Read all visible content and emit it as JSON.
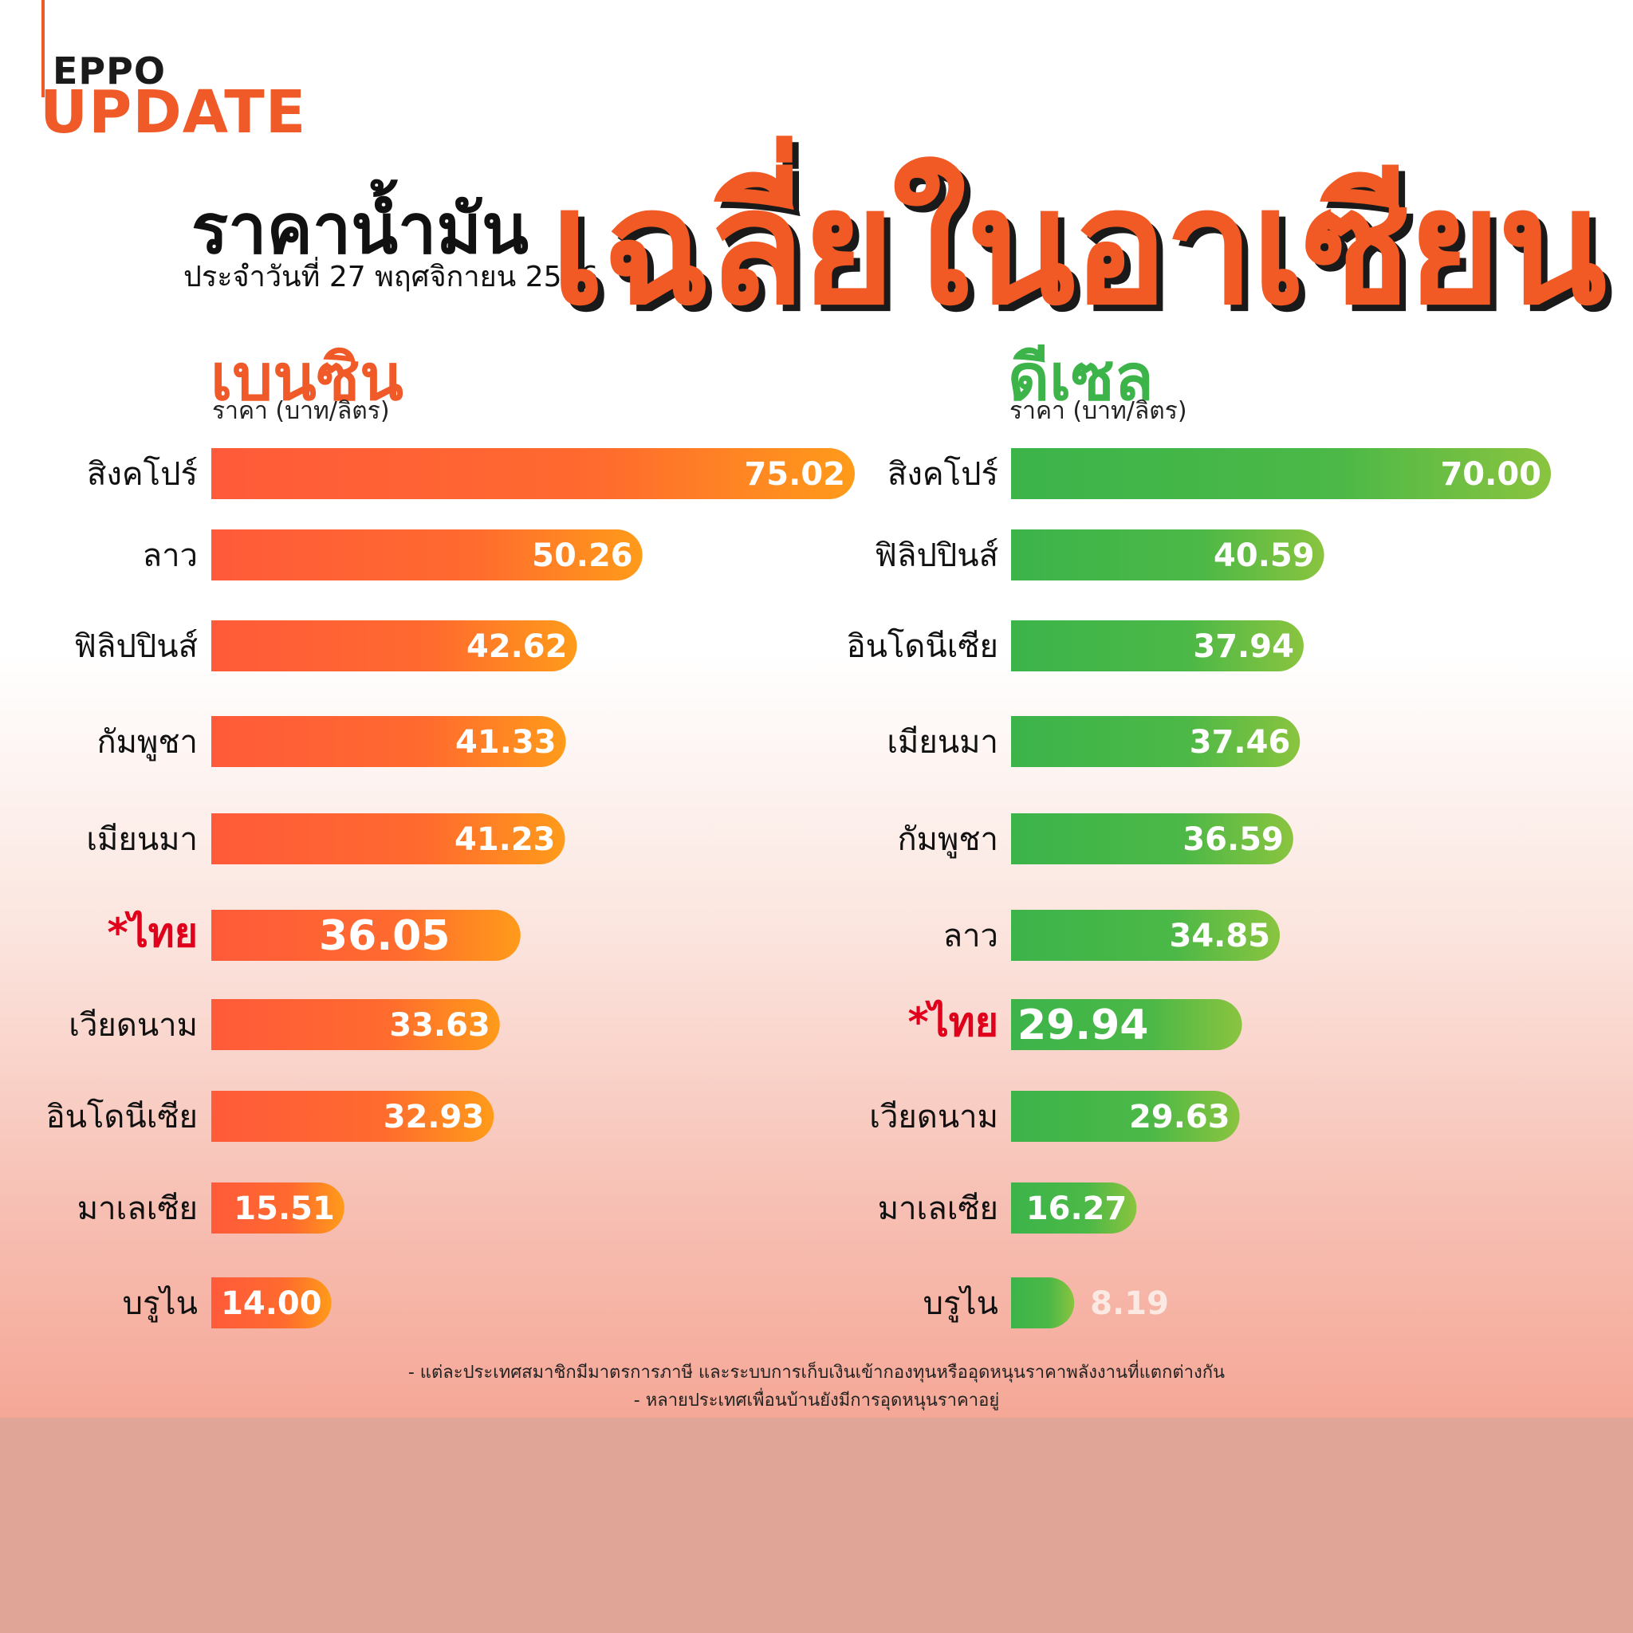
{
  "logo": {
    "line1": "EPPO",
    "line2": "UPDATE"
  },
  "title": {
    "main": "ราคาน้ำมัน",
    "date": "ประจำวันที่ 27 พฤศจิกายน 2566",
    "highlight": "เฉลี่ยในอาเซียน"
  },
  "colors": {
    "accent": "#f05a28",
    "benzin_start": "#ff5a3a",
    "benzin_end": "#ff9b1a",
    "diesel_start": "#3cb44a",
    "diesel_end": "#8ac43f",
    "thai": "#e0001b"
  },
  "notes": [
    "- แต่ละประเทศสมาชิกมีมาตรการภาษี และระบบการเก็บเงินเข้ากองทุนหรืออุดหนุนราคาพลังงานที่แตกต่างกัน",
    "- หลายประเทศเพื่อนบ้านยังมีการอุดหนุนราคาอยู่"
  ],
  "chart_data": [
    {
      "type": "bar",
      "title": "เบนซิน",
      "ylabel": "ราคา (บาท/ลิตร)",
      "orientation": "horizontal",
      "highlight": "*ไทย",
      "categories": [
        "สิงคโปร์",
        "ลาว",
        "ฟิลิปปินส์",
        "กัมพูชา",
        "เมียนมา",
        "*ไทย",
        "เวียดนาม",
        "อินโดนีเซีย",
        "มาเลเซีย",
        "บรูไน"
      ],
      "values": [
        "75.02",
        "50.26",
        "42.62",
        "41.33",
        "41.23",
        "36.05",
        "33.63",
        "32.93",
        "15.51",
        "14.00"
      ]
    },
    {
      "type": "bar",
      "title": "ดีเซล",
      "ylabel": "ราคา (บาท/ลิตร)",
      "orientation": "horizontal",
      "highlight": "*ไทย",
      "categories": [
        "สิงคโปร์",
        "ฟิลิปปินส์",
        "อินโดนีเซีย",
        "เมียนมา",
        "กัมพูชา",
        "ลาว",
        "*ไทย",
        "เวียดนาม",
        "มาเลเซีย",
        "บรูไน"
      ],
      "values": [
        "70.00",
        "40.59",
        "37.94",
        "37.46",
        "36.59",
        "34.85",
        "29.94",
        "29.63",
        "16.27",
        "8.19"
      ]
    }
  ]
}
